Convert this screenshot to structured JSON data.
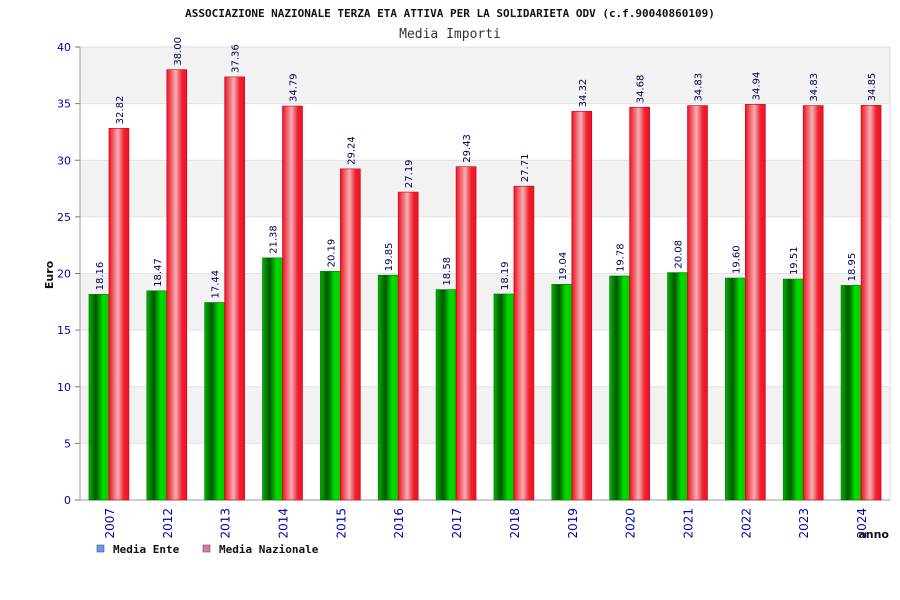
{
  "chart_data": {
    "type": "bar",
    "title": "ASSOCIAZIONE NAZIONALE TERZA ETA ATTIVA PER LA SOLIDARIETA ODV (c.f.90040860109)",
    "subtitle": "Media Importi",
    "xlabel": "anno",
    "ylabel": "Euro",
    "ylim": [
      0,
      40
    ],
    "yticks": [
      "0",
      "5",
      "10",
      "15",
      "20",
      "25",
      "30",
      "35",
      "40"
    ],
    "grid": true,
    "legend_position": "bottom-left",
    "categories": [
      "2007",
      "2012",
      "2013",
      "2014",
      "2015",
      "2016",
      "2017",
      "2018",
      "2019",
      "2020",
      "2021",
      "2022",
      "2023",
      "2024"
    ],
    "series": [
      {
        "name": "Media Ente",
        "color": "#00aa00",
        "legend_color": "#6699ee",
        "values": [
          18.16,
          18.47,
          17.44,
          21.38,
          20.19,
          19.85,
          18.58,
          18.19,
          19.04,
          19.78,
          20.08,
          19.6,
          19.51,
          18.95
        ],
        "labels": [
          "18.16",
          "18.47",
          "17.44",
          "21.38",
          "20.19",
          "19.85",
          "18.58",
          "18.19",
          "19.04",
          "19.78",
          "20.08",
          "19.60",
          "19.51",
          "18.95"
        ]
      },
      {
        "name": "Media Nazionale",
        "color": "#ee1122",
        "legend_color": "#dd77aa",
        "values": [
          32.82,
          38.0,
          37.36,
          34.79,
          29.24,
          27.19,
          29.43,
          27.71,
          34.32,
          34.68,
          34.83,
          34.94,
          34.83,
          34.85
        ],
        "labels": [
          "32.82",
          "38.00",
          "37.36",
          "34.79",
          "29.24",
          "27.19",
          "29.43",
          "27.71",
          "34.32",
          "34.68",
          "34.83",
          "34.94",
          "34.83",
          "34.85"
        ]
      }
    ]
  }
}
